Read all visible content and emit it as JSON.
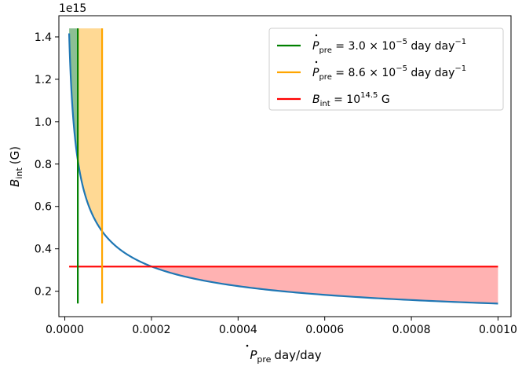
{
  "chart_data": {
    "type": "line",
    "x_axis": {
      "label": "day/day",
      "range": [
        -1.37e-05,
        0.00103
      ],
      "ticks": [
        0.0,
        0.0002,
        0.0004,
        0.0006,
        0.0008,
        0.001
      ],
      "tick_labels": [
        "0.0000",
        "0.0002",
        "0.0004",
        "0.0006",
        "0.0008",
        "0.0010"
      ]
    },
    "y_axis": {
      "label": "(G)",
      "range": [
        0.08,
        1.5
      ],
      "ticks": [
        0.2,
        0.4,
        0.6,
        0.8,
        1.0,
        1.2,
        1.4
      ],
      "tick_labels": [
        "0.2",
        "0.4",
        "0.6",
        "0.8",
        "1.0",
        "1.2",
        "1.4"
      ],
      "offset_label": "1e15"
    },
    "curve": {
      "name": "B_int(Pdot_pre)",
      "color": "#1f77b4",
      "x_range": [
        1e-05,
        0.001
      ],
      "constant": 0.00448,
      "exponent": -0.5,
      "points": [
        [
          1e-05,
          1.417
        ],
        [
          2e-05,
          1.0
        ],
        [
          3e-05,
          0.818
        ],
        [
          5e-05,
          0.634
        ],
        [
          8.61e-05,
          0.483
        ],
        [
          0.0001,
          0.448
        ],
        [
          0.0002,
          0.317
        ],
        [
          0.0003,
          0.259
        ],
        [
          0.0004,
          0.224
        ],
        [
          0.0006,
          0.183
        ],
        [
          0.0008,
          0.158
        ],
        [
          0.001,
          0.142
        ]
      ]
    },
    "vertical_lines": [
      {
        "name": "green",
        "x": 3e-05,
        "y_range": [
          0.142,
          1.44
        ],
        "color": "#008000"
      },
      {
        "name": "orange",
        "x": 8.61e-05,
        "y_range": [
          0.142,
          1.44
        ],
        "color": "#ffa500"
      }
    ],
    "horizontal_line": {
      "y": 0.3162,
      "x_range": [
        1e-05,
        0.001
      ],
      "color": "#ff0000"
    },
    "fills": [
      {
        "name": "green-band",
        "x_range": [
          1e-05,
          3e-05
        ],
        "between": "curve_and_top",
        "top": 1.44,
        "color": "#2e8b3a",
        "alpha": 0.55
      },
      {
        "name": "orange-band",
        "x_range": [
          3e-05,
          8.61e-05
        ],
        "between": "curve_and_top",
        "top": 1.44,
        "color": "#ffa500",
        "alpha": 0.42
      },
      {
        "name": "red-region",
        "x_range": [
          0.0002,
          0.001
        ],
        "between": "curve_and_hline",
        "color": "#ff0000",
        "alpha": 0.3
      }
    ],
    "legend": {
      "placement": "upper right",
      "entries": [
        {
          "color": "#008000",
          "label_parts": [
            "P",
            "pre",
            " = 3.0 × 10",
            "−5",
            " day day",
            "−1"
          ]
        },
        {
          "color": "#ffa500",
          "label_parts": [
            "P",
            "pre",
            " = 8.6 × 10",
            "−5",
            " day day",
            "−1"
          ]
        },
        {
          "color": "#ff0000",
          "label_parts": [
            "B",
            "int",
            " = 10",
            "14.5",
            " G"
          ]
        }
      ]
    },
    "grid": false
  },
  "labels": {
    "x_prefix": "P",
    "x_sub": "pre",
    "y_prefix": "B",
    "y_sub": "int"
  }
}
